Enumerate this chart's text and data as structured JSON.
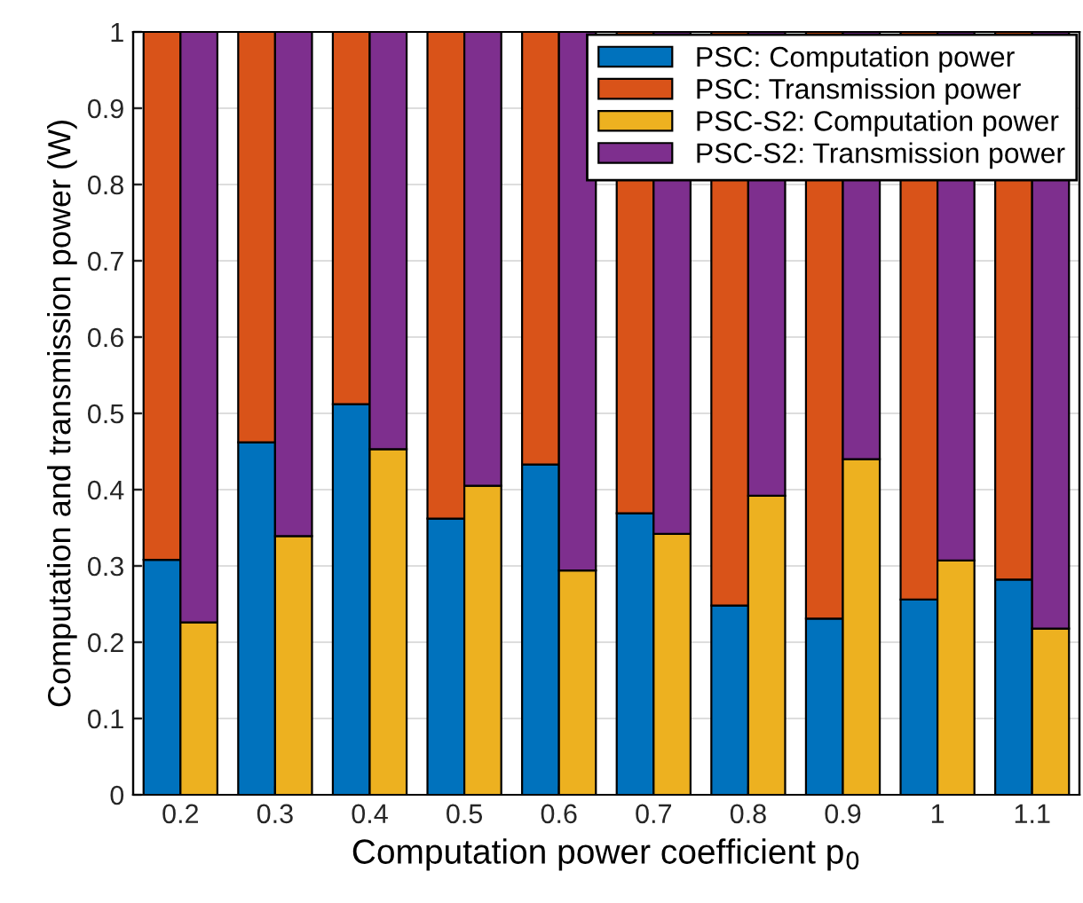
{
  "chart_data": [
    {
      "type": "bar",
      "stacked": true,
      "xlabel": "Computation power coefficient p$_{0}$",
      "ylabel": "Computation and transmission power (W)",
      "categories": [
        "0.2",
        "0.3",
        "0.4",
        "0.5",
        "0.6",
        "0.7",
        "0.8",
        "0.9",
        "1",
        "1.1"
      ],
      "series": [
        {
          "name": "PSC: Computation power",
          "color": "#0072bd",
          "values": [
            0.308,
            0.462,
            0.512,
            0.362,
            0.433,
            0.369,
            0.248,
            0.231,
            0.256,
            0.282
          ]
        },
        {
          "name": "PSC: Transmission power",
          "color": "#d95319",
          "values": [
            0.692,
            0.538,
            0.488,
            0.638,
            0.567,
            0.631,
            0.752,
            0.769,
            0.744,
            0.718
          ]
        }
      ],
      "ylim": [
        0,
        1
      ],
      "yticks": [
        0,
        0.1,
        0.2,
        0.3,
        0.4,
        0.5,
        0.6,
        0.7,
        0.8,
        0.9,
        1
      ],
      "grid": "y",
      "legend": "top right"
    },
    {
      "type": "bar",
      "stacked": true,
      "categories": [
        "0.2",
        "0.3",
        "0.4",
        "0.5",
        "0.6",
        "0.7",
        "0.8",
        "0.9",
        "1",
        "1.1"
      ],
      "series": [
        {
          "name": "PSC-S2: Computation power",
          "color": "#edb120",
          "values": [
            0.226,
            0.339,
            0.453,
            0.405,
            0.294,
            0.342,
            0.392,
            0.44,
            0.307,
            0.218
          ]
        },
        {
          "name": "PSC-S2: Transmission power",
          "color": "#7e2f8e",
          "values": [
            0.774,
            0.661,
            0.547,
            0.595,
            0.706,
            0.658,
            0.608,
            0.56,
            0.693,
            0.782
          ]
        }
      ],
      "ylim": [
        0,
        1
      ],
      "yticks": [
        0,
        0.1,
        0.2,
        0.3,
        0.4,
        0.5,
        0.6,
        0.7,
        0.8,
        0.9,
        1
      ],
      "tick_labels": false,
      "legend": "top right"
    }
  ]
}
